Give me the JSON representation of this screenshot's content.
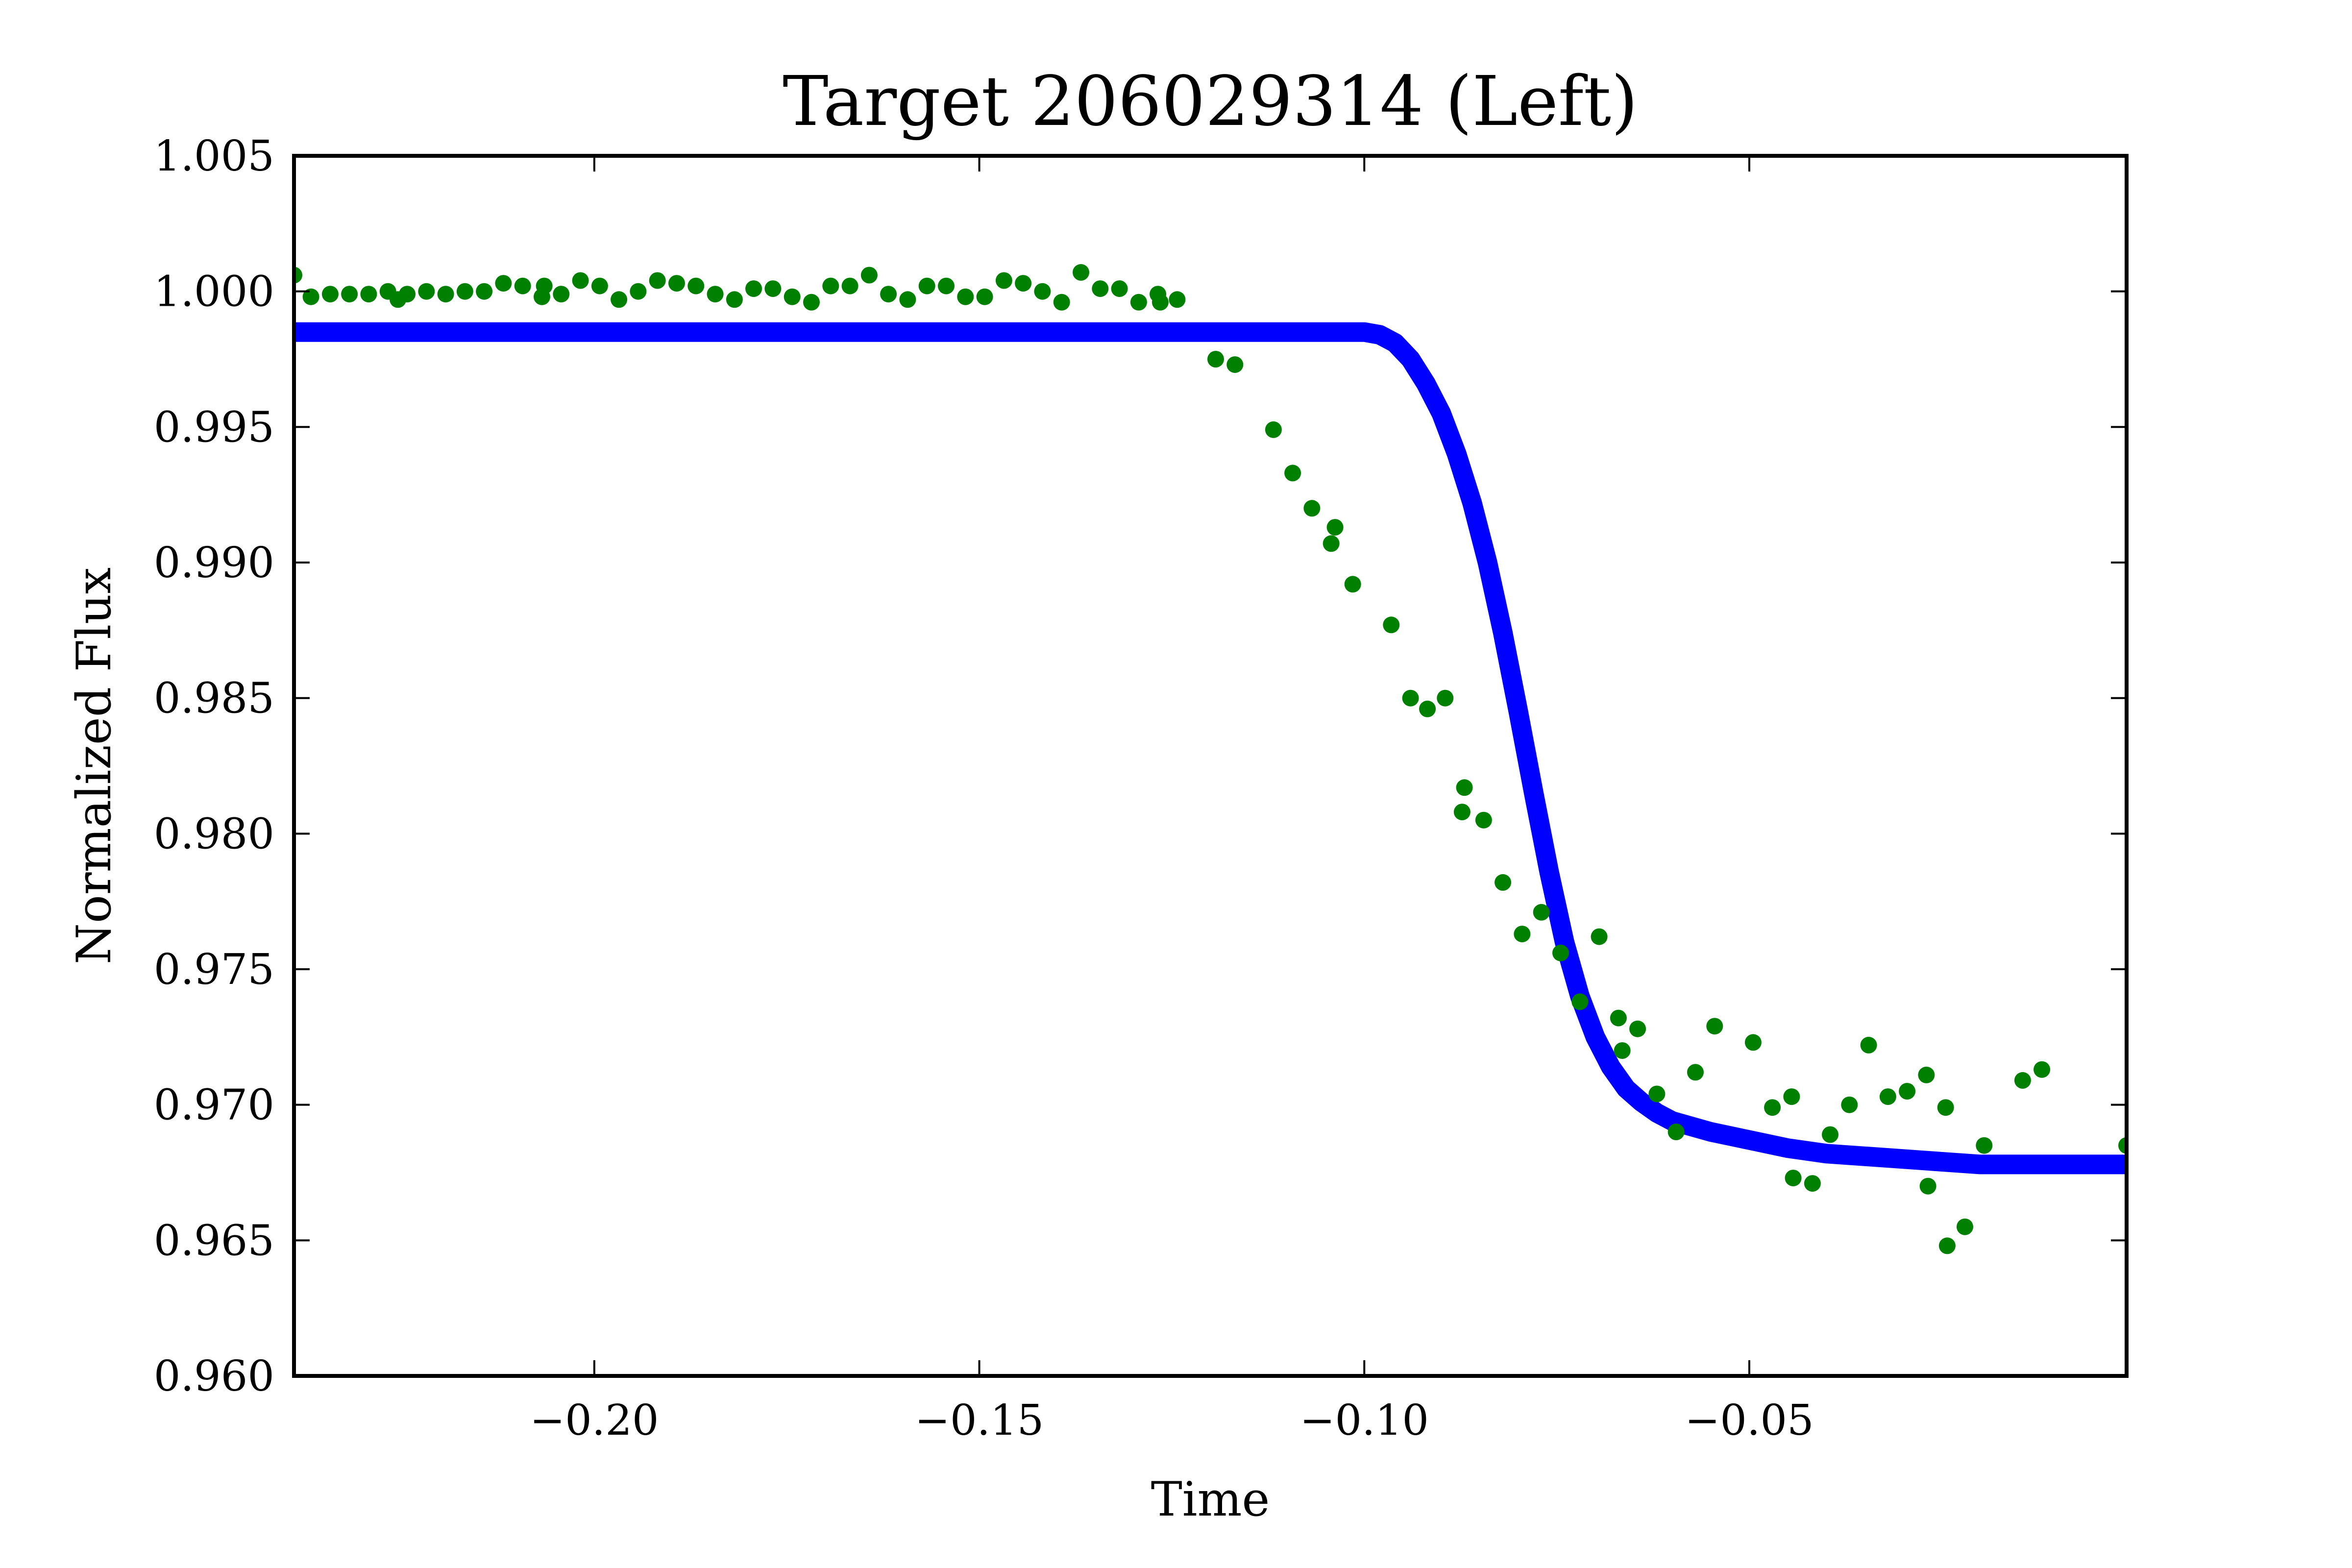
{
  "chart_data": {
    "type": "scatter",
    "title": "Target 206029314 (Left)",
    "xlabel": "Time",
    "ylabel": "Normalized Flux",
    "xlim": [
      -0.239,
      -0.001
    ],
    "ylim": [
      0.96,
      1.005
    ],
    "xticks": [
      -0.2,
      -0.15,
      -0.1,
      -0.05
    ],
    "xtick_labels": [
      "−0.20",
      "−0.15",
      "−0.10",
      "−0.05"
    ],
    "yticks": [
      0.96,
      0.965,
      0.97,
      0.975,
      0.98,
      0.985,
      0.99,
      0.995,
      1.0,
      1.005
    ],
    "ytick_labels": [
      "0.960",
      "0.965",
      "0.970",
      "0.975",
      "0.980",
      "0.985",
      "0.990",
      "0.995",
      "1.000",
      "1.005"
    ],
    "grid": false,
    "series": [
      {
        "kind": "scatter",
        "color": "#008000",
        "points": [
          [
            -0.239,
            1.0006
          ],
          [
            -0.2368,
            0.9998
          ],
          [
            -0.2343,
            0.9999
          ],
          [
            -0.2318,
            0.9999
          ],
          [
            -0.2293,
            0.9999
          ],
          [
            -0.2268,
            1.0
          ],
          [
            -0.2255,
            0.9997
          ],
          [
            -0.2243,
            0.9999
          ],
          [
            -0.2218,
            1.0
          ],
          [
            -0.2193,
            0.9999
          ],
          [
            -0.2168,
            1.0
          ],
          [
            -0.2143,
            1.0
          ],
          [
            -0.2118,
            1.0003
          ],
          [
            -0.2093,
            1.0002
          ],
          [
            -0.2068,
            0.9998
          ],
          [
            -0.2065,
            1.0002
          ],
          [
            -0.2043,
            0.9999
          ],
          [
            -0.2018,
            1.0004
          ],
          [
            -0.1993,
            1.0002
          ],
          [
            -0.1968,
            0.9997
          ],
          [
            -0.1943,
            1.0
          ],
          [
            -0.1918,
            1.0004
          ],
          [
            -0.1893,
            1.0003
          ],
          [
            -0.1868,
            1.0002
          ],
          [
            -0.1843,
            0.9999
          ],
          [
            -0.1818,
            0.9997
          ],
          [
            -0.1793,
            1.0001
          ],
          [
            -0.1768,
            1.0001
          ],
          [
            -0.1743,
            0.9998
          ],
          [
            -0.1718,
            0.9996
          ],
          [
            -0.1693,
            1.0002
          ],
          [
            -0.1668,
            1.0002
          ],
          [
            -0.1643,
            1.0006
          ],
          [
            -0.1618,
            0.9999
          ],
          [
            -0.1593,
            0.9997
          ],
          [
            -0.1568,
            1.0002
          ],
          [
            -0.1543,
            1.0002
          ],
          [
            -0.1518,
            0.9998
          ],
          [
            -0.1493,
            0.9998
          ],
          [
            -0.1468,
            1.0004
          ],
          [
            -0.1443,
            1.0003
          ],
          [
            -0.1418,
            1.0
          ],
          [
            -0.1393,
            0.9996
          ],
          [
            -0.1368,
            1.0007
          ],
          [
            -0.1343,
            1.0001
          ],
          [
            -0.1318,
            1.0001
          ],
          [
            -0.1293,
            0.9996
          ],
          [
            -0.1268,
            0.9999
          ],
          [
            -0.1265,
            0.9996
          ],
          [
            -0.1243,
            0.9997
          ],
          [
            -0.1193,
            0.9975
          ],
          [
            -0.1168,
            0.9973
          ],
          [
            -0.1118,
            0.9949
          ],
          [
            -0.1093,
            0.9933
          ],
          [
            -0.1068,
            0.992
          ],
          [
            -0.1043,
            0.9907
          ],
          [
            -0.1038,
            0.9913
          ],
          [
            -0.1015,
            0.9892
          ],
          [
            -0.0965,
            0.9877
          ],
          [
            -0.094,
            0.985
          ],
          [
            -0.0918,
            0.9846
          ],
          [
            -0.0895,
            0.985
          ],
          [
            -0.0873,
            0.9808
          ],
          [
            -0.087,
            0.9817
          ],
          [
            -0.0845,
            0.9805
          ],
          [
            -0.082,
            0.9782
          ],
          [
            -0.0795,
            0.9763
          ],
          [
            -0.077,
            0.9771
          ],
          [
            -0.0745,
            0.9756
          ],
          [
            -0.072,
            0.9738
          ],
          [
            -0.0695,
            0.9762
          ],
          [
            -0.067,
            0.9732
          ],
          [
            -0.0665,
            0.972
          ],
          [
            -0.0645,
            0.9728
          ],
          [
            -0.062,
            0.9704
          ],
          [
            -0.0595,
            0.969
          ],
          [
            -0.057,
            0.9712
          ],
          [
            -0.0545,
            0.9729
          ],
          [
            -0.0495,
            0.9723
          ],
          [
            -0.047,
            0.9699
          ],
          [
            -0.0445,
            0.9703
          ],
          [
            -0.0443,
            0.9673
          ],
          [
            -0.0418,
            0.9671
          ],
          [
            -0.0395,
            0.9689
          ],
          [
            -0.037,
            0.97
          ],
          [
            -0.0345,
            0.9722
          ],
          [
            -0.032,
            0.9703
          ],
          [
            -0.0295,
            0.9705
          ],
          [
            -0.027,
            0.9711
          ],
          [
            -0.0268,
            0.967
          ],
          [
            -0.0245,
            0.9699
          ],
          [
            -0.0243,
            0.9648
          ],
          [
            -0.022,
            0.9655
          ],
          [
            -0.0195,
            0.9685
          ],
          [
            -0.0145,
            0.9709
          ],
          [
            -0.012,
            0.9713
          ],
          [
            -0.001,
            0.9685
          ]
        ]
      },
      {
        "kind": "line",
        "color": "#0000ff",
        "points": [
          [
            -0.239,
            0.9985
          ],
          [
            -0.1,
            0.9985
          ],
          [
            -0.098,
            0.9984
          ],
          [
            -0.096,
            0.9981
          ],
          [
            -0.094,
            0.9975
          ],
          [
            -0.092,
            0.9966
          ],
          [
            -0.09,
            0.9955
          ],
          [
            -0.088,
            0.994
          ],
          [
            -0.086,
            0.9922
          ],
          [
            -0.084,
            0.99
          ],
          [
            -0.082,
            0.9874
          ],
          [
            -0.08,
            0.9845
          ],
          [
            -0.078,
            0.9815
          ],
          [
            -0.076,
            0.9786
          ],
          [
            -0.074,
            0.976
          ],
          [
            -0.072,
            0.974
          ],
          [
            -0.07,
            0.9725
          ],
          [
            -0.068,
            0.9714
          ],
          [
            -0.066,
            0.9706
          ],
          [
            -0.064,
            0.9701
          ],
          [
            -0.062,
            0.9697
          ],
          [
            -0.06,
            0.9694
          ],
          [
            -0.055,
            0.969
          ],
          [
            -0.05,
            0.9687
          ],
          [
            -0.045,
            0.9684
          ],
          [
            -0.04,
            0.9682
          ],
          [
            -0.035,
            0.9681
          ],
          [
            -0.03,
            0.968
          ],
          [
            -0.025,
            0.9679
          ],
          [
            -0.02,
            0.9678
          ],
          [
            -0.015,
            0.9678
          ],
          [
            -0.01,
            0.9678
          ],
          [
            -0.005,
            0.9678
          ],
          [
            -0.001,
            0.9678
          ]
        ]
      }
    ]
  }
}
